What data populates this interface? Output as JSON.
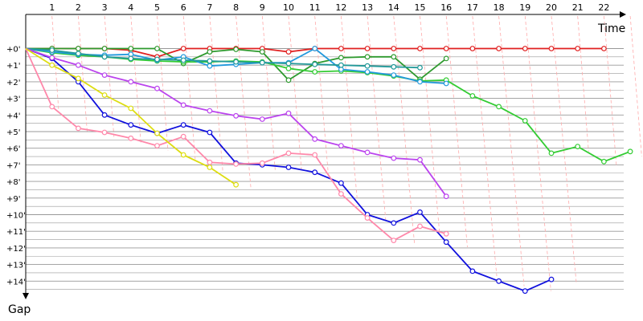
{
  "chart_data": {
    "type": "line",
    "xlabel": "Time",
    "ylabel": "Gap",
    "x_ticks": [
      1,
      2,
      3,
      4,
      5,
      6,
      7,
      8,
      9,
      10,
      11,
      12,
      13,
      14,
      15,
      16,
      17,
      18,
      19,
      20,
      21,
      22
    ],
    "y_ticks": [
      "+0'",
      "+1'",
      "+2'",
      "+3'",
      "+4'",
      "+5'",
      "+6'",
      "+7'",
      "+8'",
      "+9'",
      "+10'",
      "+11'",
      "+12'",
      "+13'",
      "+14'"
    ],
    "xlim": [
      0,
      23.5
    ],
    "ylim": [
      0,
      15
    ],
    "grid": true,
    "colors": {
      "red": "#e02020",
      "darkgreen": "#2e9a2e",
      "green": "#33cc33",
      "lightblue": "#2299dd",
      "teal": "#229999",
      "blue": "#1010dd",
      "purple": "#bb44ee",
      "pink": "#ff88aa",
      "yellow": "#dddd11",
      "connector": "#ffaaaa",
      "grid": "#999999"
    },
    "series": [
      {
        "color": "red",
        "values": [
          0,
          0,
          0,
          0,
          0.1,
          0.5,
          0,
          0,
          0,
          0,
          0.2,
          0,
          0,
          0,
          0,
          0,
          0,
          0,
          0,
          0,
          0,
          0,
          0
        ]
      },
      {
        "color": "darkgreen",
        "values": [
          0,
          0,
          0,
          0,
          0,
          0,
          0.9,
          0.2,
          0.05,
          0.2,
          1.9,
          0.9,
          0.55,
          0.5,
          0.5,
          1.85,
          0.6
        ]
      },
      {
        "color": "green",
        "values": [
          0,
          0.25,
          0.4,
          0.5,
          0.65,
          0.75,
          0.8,
          0.8,
          0.75,
          0.8,
          1.2,
          1.4,
          1.35,
          1.45,
          1.65,
          1.95,
          1.9,
          2.85,
          3.5,
          4.35,
          6.3,
          5.9,
          6.8,
          6.2
        ]
      },
      {
        "color": "lightblue",
        "values": [
          0,
          0.2,
          0.35,
          0.4,
          0.35,
          0.7,
          0.5,
          1.05,
          0.95,
          0.85,
          0.85,
          0,
          1.25,
          1.4,
          1.6,
          2.0,
          2.1
        ]
      },
      {
        "color": "teal",
        "values": [
          0,
          0.1,
          0.3,
          0.5,
          0.6,
          0.65,
          0.7,
          0.75,
          0.8,
          0.85,
          0.9,
          0.95,
          1.0,
          1.05,
          1.1,
          1.15
        ]
      },
      {
        "color": "blue",
        "values": [
          0,
          0.6,
          2.0,
          4.0,
          4.6,
          5.1,
          4.6,
          5.05,
          6.9,
          7.0,
          7.15,
          7.45,
          8.1,
          10.0,
          10.5,
          9.85,
          11.65,
          13.4,
          14.0,
          14.6,
          13.9
        ]
      },
      {
        "color": "purple",
        "values": [
          0,
          0.55,
          1.0,
          1.6,
          2.0,
          2.4,
          3.4,
          3.75,
          4.05,
          4.25,
          3.9,
          5.45,
          5.85,
          6.25,
          6.6,
          6.7,
          8.9
        ]
      },
      {
        "color": "pink",
        "values": [
          0,
          3.5,
          4.8,
          5.05,
          5.4,
          5.85,
          5.3,
          6.85,
          6.95,
          6.9,
          6.3,
          6.4,
          8.75,
          10.2,
          11.55,
          10.7,
          11.15
        ]
      },
      {
        "color": "yellow",
        "values": [
          0,
          1.0,
          1.8,
          2.8,
          3.6,
          5.1,
          6.4,
          7.15,
          8.2
        ]
      }
    ]
  }
}
